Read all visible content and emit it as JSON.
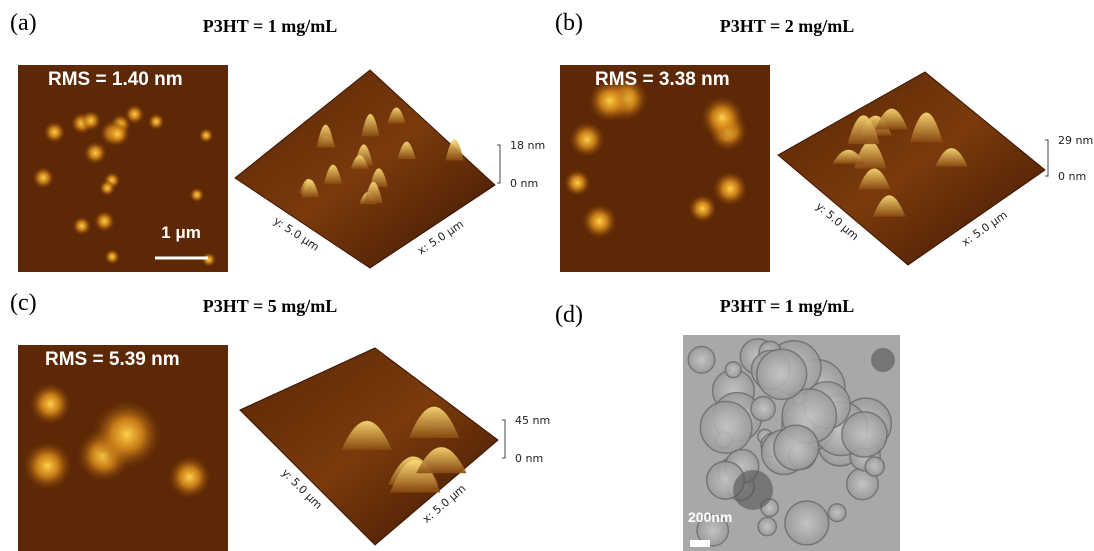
{
  "panels": [
    {
      "label": "(a)",
      "title": "P3HT = 1 mg/mL",
      "rms": "RMS = 1.40 nm",
      "scale_bar": "1 μm",
      "z_top": "18 nm",
      "z_bottom": "0 nm",
      "y_axis": "y: 5.0 μm",
      "x_axis": "x: 5.0 μm"
    },
    {
      "label": "(b)",
      "title": "P3HT = 2 mg/mL",
      "rms": "RMS = 3.38 nm",
      "z_top": "29 nm",
      "z_bottom": "0 nm",
      "y_axis": "y: 5.0 μm",
      "x_axis": "x: 5.0 μm"
    },
    {
      "label": "(c)",
      "title": "P3HT = 5 mg/mL",
      "rms": "RMS = 5.39 nm",
      "z_top": "45 nm",
      "z_bottom": "0 nm",
      "y_axis": "y: 5.0 μm",
      "x_axis": "x: 5.0 μm"
    },
    {
      "label": "(d)",
      "title": "P3HT = 1 mg/mL",
      "scale_bar": "200nm"
    }
  ]
}
